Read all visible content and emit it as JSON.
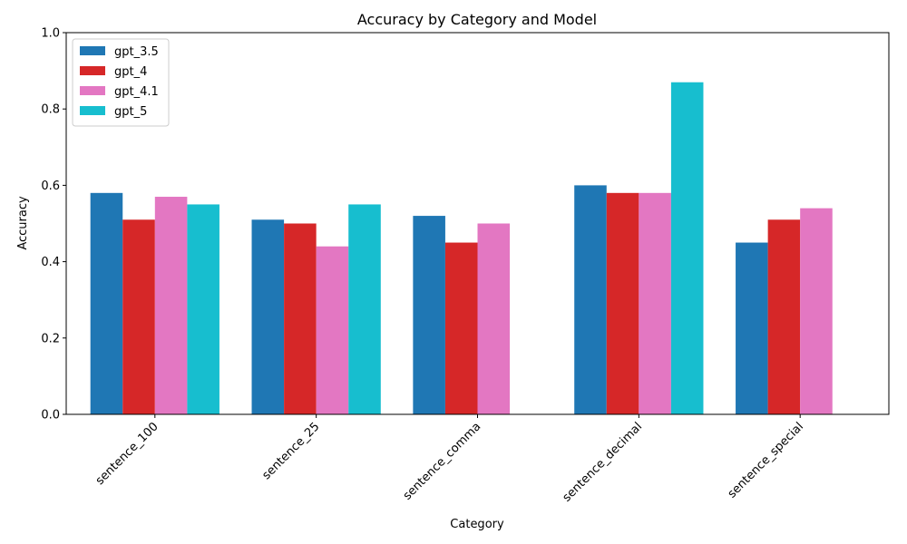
{
  "chart_data": {
    "type": "bar",
    "title": "Accuracy by Category and Model",
    "xlabel": "Category",
    "ylabel": "Accuracy",
    "ylim": [
      0,
      1.0
    ],
    "yticks": [
      "0.0",
      "0.2",
      "0.4",
      "0.6",
      "0.8",
      "1.0"
    ],
    "categories": [
      "sentence_100",
      "sentence_25",
      "sentence_comma",
      "sentence_decimal",
      "sentence_special"
    ],
    "series": [
      {
        "name": "gpt_3.5",
        "color": "#1f77b4",
        "values": [
          0.58,
          0.51,
          0.52,
          0.6,
          0.45
        ]
      },
      {
        "name": "gpt_4",
        "color": "#d62728",
        "values": [
          0.51,
          0.5,
          0.45,
          0.58,
          0.51
        ]
      },
      {
        "name": "gpt_4.1",
        "color": "#e377c2",
        "values": [
          0.57,
          0.44,
          0.5,
          0.58,
          0.54
        ]
      },
      {
        "name": "gpt_5",
        "color": "#17becf",
        "values": [
          0.55,
          0.55,
          null,
          0.87,
          null
        ]
      }
    ],
    "legend_position": "top-left",
    "grid": false
  }
}
